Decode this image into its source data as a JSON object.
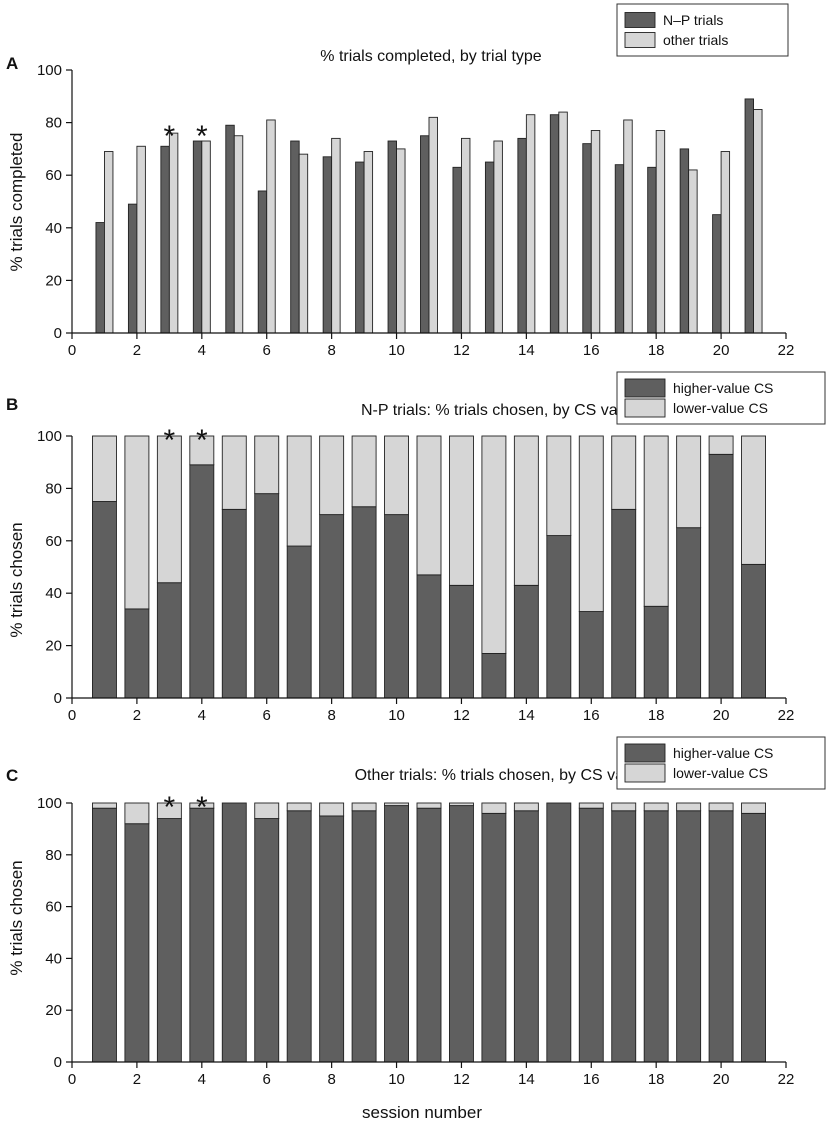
{
  "figure": {
    "xlabel": "session number"
  },
  "chart_data": [
    {
      "type": "bar",
      "panel": "A",
      "title": "% trials completed, by trial type",
      "ylabel": "% trials completed",
      "xlabel": "",
      "xlim": [
        0,
        22
      ],
      "ylim": [
        0,
        100
      ],
      "xticks": [
        0,
        2,
        4,
        6,
        8,
        10,
        12,
        14,
        16,
        18,
        20,
        22
      ],
      "yticks": [
        0,
        20,
        40,
        60,
        80,
        100
      ],
      "x": [
        1,
        2,
        3,
        4,
        5,
        6,
        7,
        8,
        9,
        10,
        11,
        12,
        13,
        14,
        15,
        16,
        17,
        18,
        19,
        20,
        21
      ],
      "series": [
        {
          "name": "N–P trials",
          "color": "#5f5f5f",
          "values": [
            42,
            49,
            71,
            73,
            79,
            54,
            73,
            67,
            65,
            73,
            75,
            63,
            65,
            74,
            83,
            72,
            64,
            63,
            70,
            45,
            89
          ]
        },
        {
          "name": "other trials",
          "color": "#d6d6d6",
          "values": [
            69,
            71,
            76,
            73,
            75,
            81,
            68,
            74,
            69,
            70,
            82,
            74,
            73,
            83,
            84,
            77,
            81,
            77,
            62,
            69,
            85
          ]
        }
      ],
      "legend": {
        "position": "top-right"
      },
      "annotations": [
        {
          "text": "*",
          "x": 3
        },
        {
          "text": "*",
          "x": 4
        }
      ]
    },
    {
      "type": "bar",
      "stacked": true,
      "panel": "B",
      "title": "N-P trials:  % trials chosen, by CS value",
      "ylabel": "% trials chosen",
      "xlabel": "",
      "xlim": [
        0,
        22
      ],
      "ylim": [
        0,
        100
      ],
      "xticks": [
        0,
        2,
        4,
        6,
        8,
        10,
        12,
        14,
        16,
        18,
        20,
        22
      ],
      "yticks": [
        0,
        20,
        40,
        60,
        80,
        100
      ],
      "x": [
        1,
        2,
        3,
        4,
        5,
        6,
        7,
        8,
        9,
        10,
        11,
        12,
        13,
        14,
        15,
        16,
        17,
        18,
        19,
        20,
        21
      ],
      "series": [
        {
          "name": "higher-value CS",
          "color": "#5f5f5f",
          "values": [
            75,
            34,
            44,
            89,
            72,
            78,
            58,
            70,
            73,
            70,
            47,
            43,
            17,
            43,
            62,
            33,
            72,
            35,
            65,
            93,
            51
          ]
        },
        {
          "name": "lower-value CS",
          "color": "#d6d6d6",
          "values": [
            25,
            66,
            56,
            11,
            28,
            22,
            42,
            30,
            27,
            30,
            53,
            57,
            83,
            57,
            38,
            67,
            28,
            65,
            35,
            7,
            49
          ]
        }
      ],
      "legend": {
        "position": "top-right"
      },
      "annotations": [
        {
          "text": "*",
          "x": 3
        },
        {
          "text": "*",
          "x": 4
        }
      ]
    },
    {
      "type": "bar",
      "stacked": true,
      "panel": "C",
      "title": "Other trials:  % trials chosen, by CS value",
      "ylabel": "% trials chosen",
      "xlabel": "session number",
      "xlim": [
        0,
        22
      ],
      "ylim": [
        0,
        100
      ],
      "xticks": [
        0,
        2,
        4,
        6,
        8,
        10,
        12,
        14,
        16,
        18,
        20,
        22
      ],
      "yticks": [
        0,
        20,
        40,
        60,
        80,
        100
      ],
      "x": [
        1,
        2,
        3,
        4,
        5,
        6,
        7,
        8,
        9,
        10,
        11,
        12,
        13,
        14,
        15,
        16,
        17,
        18,
        19,
        20,
        21
      ],
      "series": [
        {
          "name": "higher-value CS",
          "color": "#5f5f5f",
          "values": [
            98,
            92,
            94,
            98,
            100,
            94,
            97,
            95,
            97,
            99,
            98,
            99,
            96,
            97,
            100,
            98,
            97,
            97,
            97,
            97,
            96
          ]
        },
        {
          "name": "lower-value CS",
          "color": "#d6d6d6",
          "values": [
            2,
            8,
            6,
            2,
            0,
            6,
            3,
            5,
            3,
            1,
            2,
            1,
            4,
            3,
            0,
            2,
            3,
            3,
            3,
            3,
            4
          ]
        }
      ],
      "legend": {
        "position": "top-right"
      },
      "annotations": [
        {
          "text": "*",
          "x": 3
        },
        {
          "text": "*",
          "x": 4
        }
      ]
    }
  ]
}
